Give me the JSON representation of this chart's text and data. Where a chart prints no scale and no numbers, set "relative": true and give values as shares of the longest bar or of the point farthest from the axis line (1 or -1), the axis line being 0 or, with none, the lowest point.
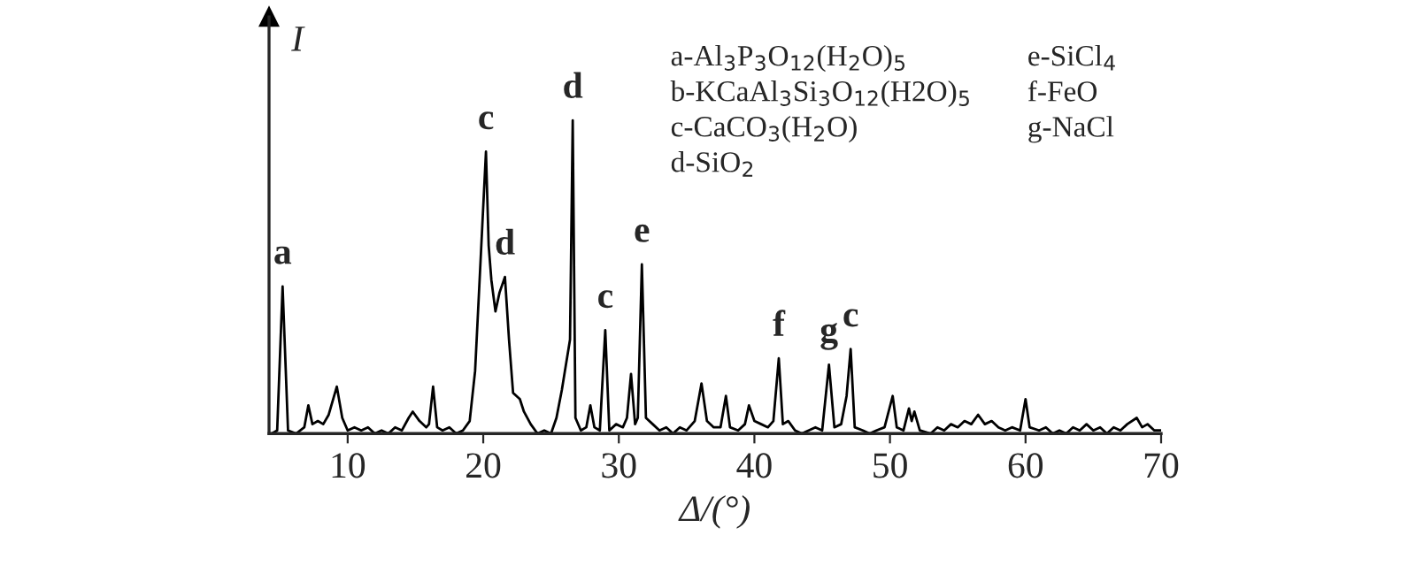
{
  "chart_data": {
    "type": "line",
    "relative": true,
    "xlabel": "Δ/(°)",
    "ylabel": "I",
    "xlim": [
      4.2,
      70
    ],
    "xticks": [
      10,
      20,
      30,
      40,
      50,
      60,
      70
    ],
    "series": [
      {
        "color": "#000000",
        "x": [
          4.4,
          4.8,
          5.2,
          5.6,
          6.2,
          6.8,
          7.1,
          7.4,
          7.8,
          8.2,
          8.6,
          9.2,
          9.6,
          10.0,
          10.5,
          11.0,
          11.5,
          12.0,
          12.5,
          13.0,
          13.5,
          14.0,
          14.5,
          14.8,
          15.3,
          15.8,
          16.0,
          16.3,
          16.6,
          17.0,
          17.5,
          18.0,
          18.5,
          19.0,
          19.4,
          19.8,
          20.2,
          20.4,
          20.6,
          20.9,
          21.2,
          21.6,
          21.9,
          22.2,
          22.7,
          23.0,
          23.5,
          24.0,
          24.5,
          25.0,
          25.4,
          25.8,
          26.1,
          26.4,
          26.6,
          26.8,
          27.2,
          27.6,
          27.9,
          28.2,
          28.6,
          29.0,
          29.3,
          29.8,
          30.3,
          30.6,
          30.9,
          31.2,
          31.4,
          31.7,
          32.0,
          32.5,
          33.0,
          33.5,
          34.0,
          34.5,
          35.0,
          35.6,
          36.1,
          36.5,
          37.0,
          37.5,
          37.9,
          38.2,
          38.8,
          39.3,
          39.6,
          40.0,
          40.5,
          41.0,
          41.4,
          41.8,
          42.1,
          42.5,
          43.0,
          43.5,
          44.0,
          44.5,
          45.0,
          45.5,
          45.9,
          46.4,
          46.8,
          47.1,
          47.4,
          48.0,
          48.5,
          49.0,
          49.6,
          50.2,
          50.5,
          51.0,
          51.4,
          51.6,
          51.8,
          52.2,
          53.0,
          53.5,
          54.0,
          54.5,
          55.0,
          55.5,
          56.0,
          56.5,
          57.0,
          57.5,
          58.0,
          58.5,
          59.0,
          59.6,
          60.0,
          60.3,
          61.0,
          61.5,
          62.0,
          62.5,
          63.0,
          63.5,
          64.0,
          64.5,
          65.0,
          65.5,
          66.0,
          66.5,
          67.0,
          67.5,
          68.2,
          68.6,
          69.0,
          69.5,
          70.0
        ],
        "values": [
          0.0,
          0.01,
          0.47,
          0.01,
          0.0,
          0.02,
          0.09,
          0.03,
          0.04,
          0.03,
          0.06,
          0.15,
          0.05,
          0.01,
          0.02,
          0.01,
          0.02,
          0.0,
          0.01,
          0.0,
          0.02,
          0.01,
          0.05,
          0.07,
          0.04,
          0.02,
          0.03,
          0.15,
          0.02,
          0.01,
          0.02,
          0.0,
          0.01,
          0.04,
          0.2,
          0.55,
          0.9,
          0.6,
          0.49,
          0.39,
          0.45,
          0.5,
          0.3,
          0.13,
          0.11,
          0.07,
          0.03,
          0.0,
          0.01,
          0.0,
          0.05,
          0.14,
          0.22,
          0.3,
          1.0,
          0.05,
          0.01,
          0.02,
          0.09,
          0.02,
          0.01,
          0.33,
          0.01,
          0.03,
          0.02,
          0.05,
          0.19,
          0.03,
          0.05,
          0.54,
          0.05,
          0.03,
          0.01,
          0.02,
          0.0,
          0.02,
          0.01,
          0.04,
          0.16,
          0.04,
          0.02,
          0.02,
          0.12,
          0.02,
          0.01,
          0.03,
          0.09,
          0.04,
          0.03,
          0.02,
          0.04,
          0.24,
          0.03,
          0.04,
          0.01,
          0.0,
          0.01,
          0.02,
          0.01,
          0.22,
          0.02,
          0.03,
          0.12,
          0.27,
          0.02,
          0.01,
          0.0,
          0.01,
          0.02,
          0.12,
          0.02,
          0.01,
          0.08,
          0.04,
          0.07,
          0.01,
          0.0,
          0.02,
          0.01,
          0.03,
          0.02,
          0.04,
          0.03,
          0.06,
          0.03,
          0.04,
          0.02,
          0.01,
          0.02,
          0.01,
          0.11,
          0.02,
          0.01,
          0.02,
          0.0,
          0.01,
          0.0,
          0.02,
          0.01,
          0.03,
          0.01,
          0.02,
          0.0,
          0.02,
          0.01,
          0.03,
          0.05,
          0.02,
          0.03,
          0.01,
          0.01
        ]
      }
    ],
    "annotations": [
      {
        "text": "a",
        "x": 5.2,
        "y": 0.47
      },
      {
        "text": "c",
        "x": 20.2,
        "y": 0.9
      },
      {
        "text": "d",
        "x": 21.6,
        "y": 0.5
      },
      {
        "text": "d",
        "x": 26.6,
        "y": 1.0
      },
      {
        "text": "c",
        "x": 29.0,
        "y": 0.33
      },
      {
        "text": "e",
        "x": 31.7,
        "y": 0.54
      },
      {
        "text": "f",
        "x": 41.8,
        "y": 0.24
      },
      {
        "text": "g",
        "x": 45.5,
        "y": 0.22
      },
      {
        "text": "c",
        "x": 47.1,
        "y": 0.27
      },
      "a-Al$_{3}$P$_{3}$O$_{12}$(H$_{2}$O)$_{5}$",
      "b-KCaAl$_{3}$Si$_{3}$O$_{12}$(H2O)$_{5}$",
      "c-CaCO$_{3}$(H$_{2}$O)",
      "d-SiO$_{2}$",
      "e-SiCl$_{4}$",
      "f-FeO",
      "g-NaCl"
    ]
  }
}
